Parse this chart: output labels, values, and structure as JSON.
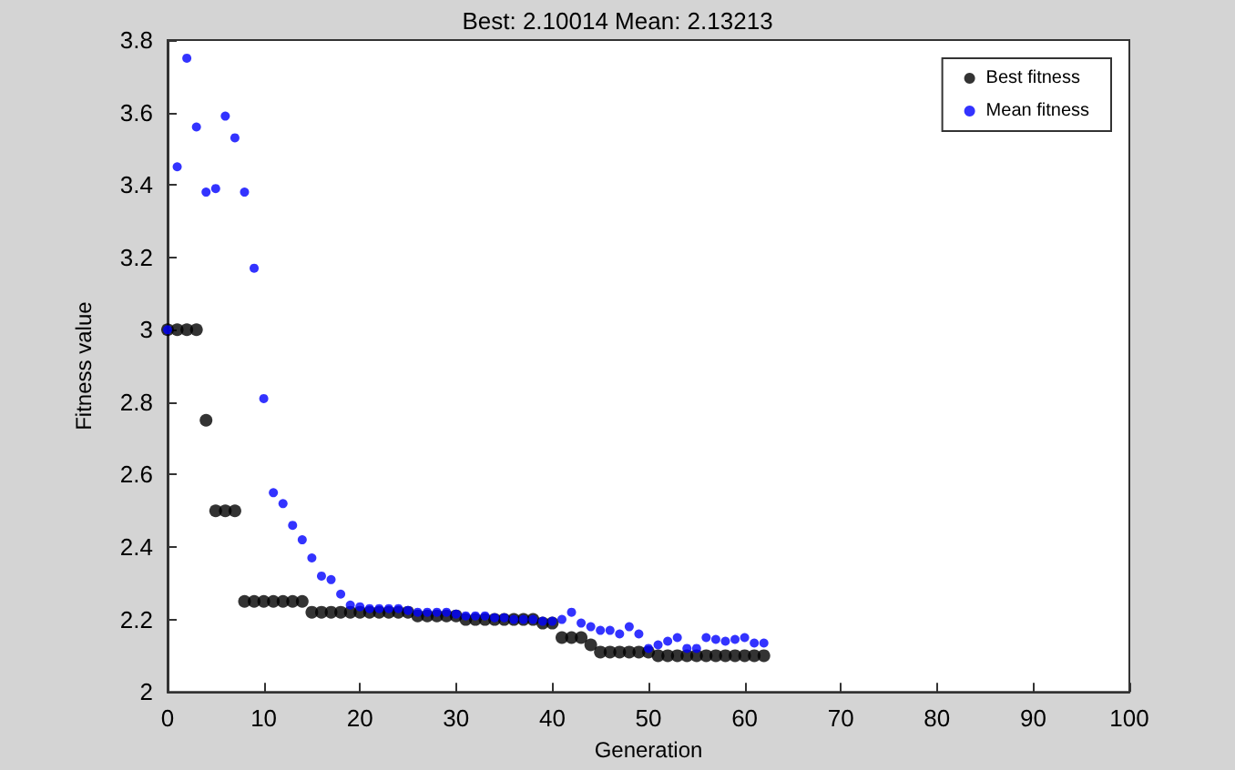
{
  "chart_data": {
    "type": "scatter",
    "title": "Best: 2.10014 Mean: 2.13213",
    "xlabel": "Generation",
    "ylabel": "Fitness value",
    "x": [
      0,
      1,
      2,
      3,
      4,
      5,
      6,
      7,
      8,
      9,
      10,
      11,
      12,
      13,
      14,
      15,
      16,
      17,
      18,
      19,
      20,
      21,
      22,
      23,
      24,
      25,
      26,
      27,
      28,
      29,
      30,
      31,
      32,
      33,
      34,
      35,
      36,
      37,
      38,
      39,
      40,
      41,
      42,
      43,
      44,
      45,
      46,
      47,
      48,
      49,
      50,
      51,
      52,
      53,
      54,
      55,
      56,
      57,
      58,
      59,
      60,
      61,
      62
    ],
    "series": [
      {
        "name": "Best fitness",
        "color": "#000000",
        "values": [
          3.0,
          3.0,
          3.0,
          3.0,
          2.75,
          2.5,
          2.5,
          2.5,
          2.25,
          2.25,
          2.25,
          2.25,
          2.25,
          2.25,
          2.25,
          2.22,
          2.22,
          2.22,
          2.22,
          2.22,
          2.22,
          2.22,
          2.22,
          2.22,
          2.22,
          2.22,
          2.21,
          2.21,
          2.21,
          2.21,
          2.21,
          2.2,
          2.2,
          2.2,
          2.2,
          2.2,
          2.2,
          2.2,
          2.2,
          2.19,
          2.19,
          2.15,
          2.15,
          2.15,
          2.13,
          2.11,
          2.11,
          2.11,
          2.11,
          2.11,
          2.11,
          2.1,
          2.1,
          2.1,
          2.1,
          2.1,
          2.1,
          2.1,
          2.1,
          2.1,
          2.1,
          2.1,
          2.1
        ]
      },
      {
        "name": "Mean fitness",
        "color": "#0000ff",
        "values": [
          3.0,
          3.45,
          3.75,
          3.56,
          3.38,
          3.39,
          3.59,
          3.53,
          3.38,
          3.17,
          2.81,
          2.55,
          2.52,
          2.46,
          2.42,
          2.37,
          2.32,
          2.31,
          2.27,
          2.24,
          2.235,
          2.23,
          2.23,
          2.23,
          2.23,
          2.225,
          2.22,
          2.22,
          2.22,
          2.22,
          2.215,
          2.21,
          2.21,
          2.21,
          2.205,
          2.205,
          2.2,
          2.2,
          2.2,
          2.195,
          2.195,
          2.2,
          2.22,
          2.19,
          2.18,
          2.17,
          2.17,
          2.16,
          2.18,
          2.16,
          2.12,
          2.13,
          2.14,
          2.15,
          2.12,
          2.12,
          2.15,
          2.145,
          2.14,
          2.145,
          2.15,
          2.135,
          2.135
        ]
      }
    ],
    "xlim": [
      0,
      100
    ],
    "xticks": [
      0,
      10,
      20,
      30,
      40,
      50,
      60,
      70,
      80,
      90,
      100
    ],
    "ylim": [
      2,
      3.8
    ],
    "yticks": [
      2,
      2.2,
      2.4,
      2.6,
      2.8,
      3,
      3.2,
      3.4,
      3.6,
      3.8
    ],
    "grid": false,
    "legend": "top right",
    "marker": "circle"
  }
}
